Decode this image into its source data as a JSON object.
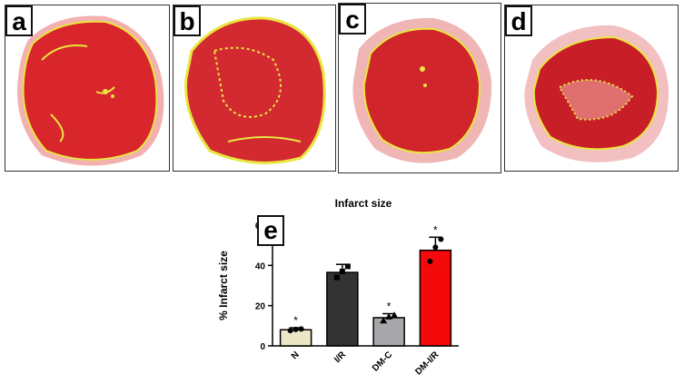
{
  "panels": [
    {
      "letter": "a"
    },
    {
      "letter": "b"
    },
    {
      "letter": "c"
    },
    {
      "letter": "d"
    }
  ],
  "chart_data": {
    "type": "bar",
    "panel_letter": "e",
    "title": "Infarct size",
    "xlabel": "",
    "ylabel": "% Infarct size",
    "ylim": [
      0,
      60
    ],
    "yticks": [
      0,
      20,
      40,
      60
    ],
    "categories": [
      "N",
      "I/R",
      "DM-C",
      "DM-I/R"
    ],
    "values": [
      8,
      36.5,
      14,
      47.5
    ],
    "errors": [
      1,
      4,
      2,
      6.5
    ],
    "significance": [
      "*",
      "",
      "*",
      "*"
    ],
    "colors": [
      "#ebe6c6",
      "#333333",
      "#a7a7ab",
      "#f40a0a"
    ],
    "grid": false,
    "points": [
      [
        7.6,
        8.2,
        8.4
      ],
      [
        34,
        37,
        39.5
      ],
      [
        12.5,
        14.5,
        15.2
      ],
      [
        42,
        49,
        53
      ]
    ]
  }
}
